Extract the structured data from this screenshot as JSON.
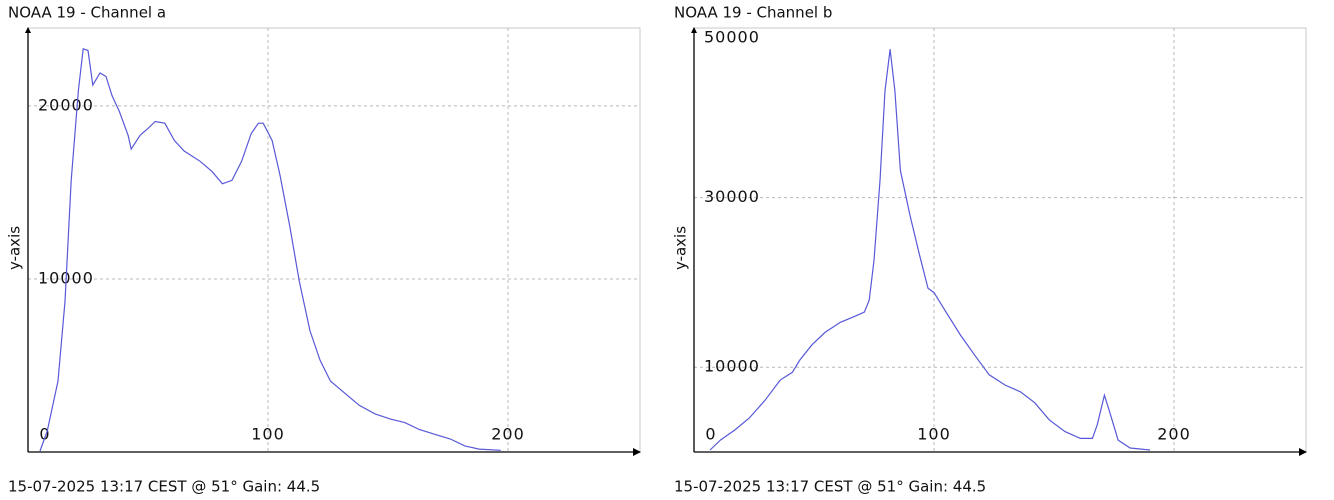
{
  "chart_data": [
    {
      "type": "line",
      "title": "NOAA 19 - Channel a",
      "footer": "15-07-2025 13:17 CEST @ 51° Gain: 44.5",
      "y_label": "y-axis",
      "color": "#5858d8",
      "grid": true,
      "xlim": [
        0,
        255
      ],
      "xticks": [
        0,
        100,
        200
      ],
      "ylim": [
        0,
        24500
      ],
      "yticks": [
        10000,
        20000
      ],
      "x": [
        5,
        8,
        12.5,
        15.4,
        18,
        21,
        23,
        25,
        27,
        30,
        32.5,
        35,
        38,
        41.7,
        43,
        46.7,
        50,
        53,
        57,
        61,
        65,
        71.7,
        76.7,
        81,
        85,
        89,
        93,
        96,
        98,
        101.7,
        105,
        109,
        113,
        117.5,
        121.7,
        126,
        132,
        138,
        144.6,
        151,
        157,
        163,
        170,
        176,
        182,
        188,
        197
      ],
      "values": [
        60,
        1200,
        4100,
        8700,
        15700,
        20900,
        23300,
        23200,
        21200,
        21900,
        21700,
        20600,
        19700,
        18300,
        17500,
        18300,
        18700,
        19100,
        19000,
        18000,
        17400,
        16800,
        16200,
        15500,
        15700,
        16800,
        18400,
        19000,
        19000,
        18000,
        16000,
        13100,
        9900,
        7000,
        5300,
        4100,
        3400,
        2700,
        2200,
        1900,
        1700,
        1300,
        1000,
        750,
        350,
        170,
        100
      ]
    },
    {
      "type": "line",
      "title": "NOAA 19 - Channel b",
      "footer": "15-07-2025 13:17 CEST @ 51° Gain: 44.5",
      "y_label": "y-axis",
      "color": "#5858d8",
      "grid": true,
      "xlim": [
        0,
        255
      ],
      "xticks": [
        0,
        100,
        200
      ],
      "ylim": [
        0,
        50000
      ],
      "yticks": [
        10000,
        30000,
        50000
      ],
      "x": [
        6.7,
        11,
        17,
        23,
        29.6,
        36,
        41,
        44,
        49,
        54.6,
        61,
        67,
        71,
        73,
        75,
        77.5,
        79.6,
        81.7,
        83.7,
        86,
        90,
        94,
        97.5,
        100,
        104.6,
        111,
        117,
        123,
        129.6,
        136,
        142,
        148,
        154.6,
        161,
        166,
        168,
        171,
        173,
        176.7,
        181.7,
        190
      ],
      "values": [
        240,
        1400,
        2600,
        4000,
        6100,
        8500,
        9400,
        10800,
        12600,
        14100,
        15300,
        16000,
        16500,
        17900,
        22600,
        32000,
        42600,
        47500,
        42600,
        33200,
        27900,
        23200,
        19300,
        18800,
        16700,
        13800,
        11400,
        9100,
        7900,
        7100,
        5800,
        3800,
        2400,
        1600,
        1600,
        3200,
        6700,
        4900,
        1400,
        470,
        240
      ]
    }
  ]
}
